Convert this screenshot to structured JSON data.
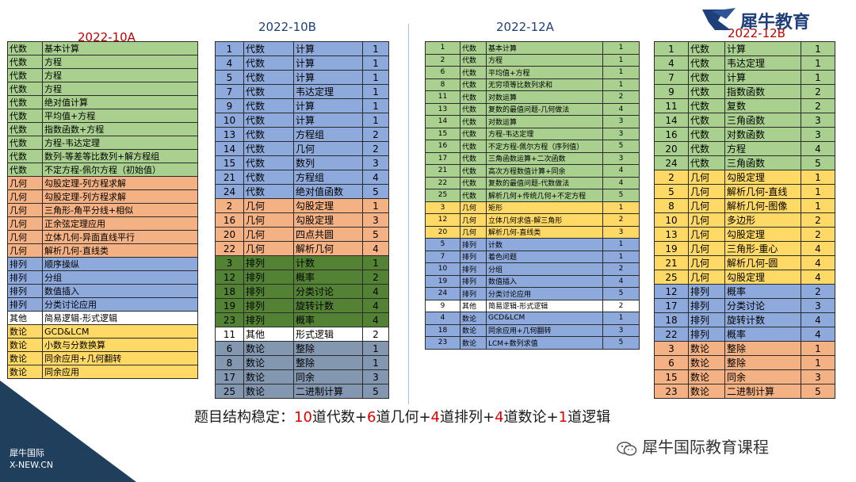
{
  "logo": {
    "brand": "犀牛教育"
  },
  "watermark": {
    "line1": "犀牛国际",
    "line2": "X-NEW.CN"
  },
  "wechat_label": "犀牛国际教育课程",
  "summary": [
    "题目结构稳定：",
    "10",
    "道代数+",
    "6",
    "道几何+",
    "4",
    "道排列+",
    "4",
    "道数论+",
    "1",
    "道逻辑"
  ],
  "tables": [
    {
      "title": "2022-10A",
      "rows": [
        [
          "代数",
          "基本计算",
          "green"
        ],
        [
          "代数",
          "方程",
          "green"
        ],
        [
          "代数",
          "方程",
          "green"
        ],
        [
          "代数",
          "方程",
          "green"
        ],
        [
          "代数",
          "绝对值计算",
          "green"
        ],
        [
          "代数",
          "平均值+方程",
          "green"
        ],
        [
          "代数",
          "指数函数+方程",
          "green"
        ],
        [
          "代数",
          "方程-韦达定理",
          "green"
        ],
        [
          "代数",
          "数列-等差等比数列+解方程组",
          "green"
        ],
        [
          "代数",
          "不定方程-佩尔方程（初始值）",
          "green"
        ],
        [
          "几何",
          "勾股定理-列方程求解",
          "orange"
        ],
        [
          "几何",
          "勾股定理-列方程求解",
          "orange"
        ],
        [
          "几何",
          "三角形-角平分线+相似",
          "orange"
        ],
        [
          "几何",
          "正余弦定理应用",
          "orange"
        ],
        [
          "几何",
          "立体几何-异面直线平行",
          "orange"
        ],
        [
          "几何",
          "解析几何-直线类",
          "orange"
        ],
        [
          "排列",
          "顺序操纵",
          "blue"
        ],
        [
          "排列",
          "分组",
          "blue"
        ],
        [
          "排列",
          "数值插入",
          "blue"
        ],
        [
          "排列",
          "分类讨论应用",
          "blue"
        ],
        [
          "其他",
          "简易逻辑-形式逻辑",
          "white"
        ],
        [
          "数论",
          "GCD&LCM",
          "yellow"
        ],
        [
          "数论",
          "小数与分数换算",
          "yellow"
        ],
        [
          "数论",
          "同余应用+几何翻转",
          "yellow"
        ],
        [
          "数论",
          "同余应用",
          "yellow"
        ]
      ]
    },
    {
      "title": "2022-10B",
      "rows": [
        [
          "1",
          "代数",
          "计算",
          "1",
          "blue"
        ],
        [
          "4",
          "代数",
          "计算",
          "1",
          "blue"
        ],
        [
          "5",
          "代数",
          "计算",
          "1",
          "blue"
        ],
        [
          "7",
          "代数",
          "韦达定理",
          "1",
          "blue"
        ],
        [
          "9",
          "代数",
          "计算",
          "1",
          "blue"
        ],
        [
          "10",
          "代数",
          "计算",
          "1",
          "blue"
        ],
        [
          "13",
          "代数",
          "方程组",
          "2",
          "blue"
        ],
        [
          "14",
          "代数",
          "几何",
          "2",
          "blue"
        ],
        [
          "15",
          "代数",
          "数列",
          "3",
          "blue"
        ],
        [
          "21",
          "代数",
          "方程组",
          "4",
          "blue"
        ],
        [
          "24",
          "代数",
          "绝对值函数",
          "5",
          "blue"
        ],
        [
          "2",
          "几何",
          "勾股定理",
          "1",
          "orange"
        ],
        [
          "16",
          "几何",
          "勾股定理",
          "3",
          "orange"
        ],
        [
          "20",
          "几何",
          "四点共圆",
          "5",
          "orange"
        ],
        [
          "22",
          "几何",
          "解析几何",
          "4",
          "orange"
        ],
        [
          "3",
          "排列",
          "计数",
          "1",
          "dgreen"
        ],
        [
          "12",
          "排列",
          "概率",
          "2",
          "dgreen"
        ],
        [
          "18",
          "排列",
          "分类讨论",
          "4",
          "dgreen"
        ],
        [
          "19",
          "排列",
          "旋转计数",
          "4",
          "dgreen"
        ],
        [
          "23",
          "排列",
          "概率",
          "4",
          "dgreen"
        ],
        [
          "11",
          "其他",
          "形式逻辑",
          "2",
          "white"
        ],
        [
          "6",
          "数论",
          "整除",
          "1",
          "gray"
        ],
        [
          "8",
          "数论",
          "整除",
          "1",
          "gray"
        ],
        [
          "17",
          "数论",
          "同余",
          "3",
          "gray"
        ],
        [
          "25",
          "数论",
          "二进制计算",
          "5",
          "gray"
        ]
      ]
    },
    {
      "title": "2022-12A",
      "rows": [
        [
          "1",
          "代数",
          "基本计算",
          "1",
          "green"
        ],
        [
          "2",
          "代数",
          "方程",
          "1",
          "green"
        ],
        [
          "6",
          "代数",
          "平均值+方程",
          "1",
          "green"
        ],
        [
          "8",
          "代数",
          "无穷项等比数列求和",
          "1",
          "green"
        ],
        [
          "11",
          "代数",
          "对数运算",
          "2",
          "green"
        ],
        [
          "13",
          "代数",
          "复数的最值问题-几何做法",
          "4",
          "green"
        ],
        [
          "14",
          "代数",
          "对数运算",
          "3",
          "green"
        ],
        [
          "15",
          "代数",
          "方程-韦达定理",
          "3",
          "green"
        ],
        [
          "16",
          "代数",
          "不定方程-佩尔方程（序列值）",
          "5",
          "green"
        ],
        [
          "17",
          "代数",
          "三角函数运算+二次函数",
          "3",
          "green"
        ],
        [
          "21",
          "代数",
          "高次方程数值计算+同余",
          "4",
          "green"
        ],
        [
          "22",
          "代数",
          "复数的最值问题-代数做法",
          "4",
          "green"
        ],
        [
          "25",
          "代数",
          "解析几何+传统几何+不定方程",
          "5",
          "green"
        ],
        [
          "3",
          "几何",
          "矩形",
          "1",
          "yellow"
        ],
        [
          "12",
          "几何",
          "立体几何求值-解三角形",
          "2",
          "yellow"
        ],
        [
          "20",
          "几何",
          "解析几何-直线类",
          "3",
          "yellow"
        ],
        [
          "5",
          "排列",
          "计数",
          "1",
          "blue"
        ],
        [
          "7",
          "排列",
          "着色问题",
          "1",
          "blue"
        ],
        [
          "10",
          "排列",
          "分组",
          "2",
          "blue"
        ],
        [
          "19",
          "排列",
          "数值插入",
          "4",
          "blue"
        ],
        [
          "24",
          "排列",
          "分类讨论应用",
          "5",
          "blue"
        ],
        [
          "9",
          "其他",
          "简易逻辑-形式逻辑",
          "2",
          "white"
        ],
        [
          "4",
          "数论",
          "GCD&LCM",
          "1",
          "blue"
        ],
        [
          "18",
          "数论",
          "同余应用+几何翻转",
          "3",
          "blue"
        ],
        [
          "23",
          "数论",
          "LCM+数列求值",
          "5",
          "blue"
        ]
      ]
    },
    {
      "title": "2022-12B",
      "rows": [
        [
          "1",
          "代数",
          "计算",
          "1",
          "green"
        ],
        [
          "4",
          "代数",
          "韦达定理",
          "1",
          "green"
        ],
        [
          "7",
          "代数",
          "计算",
          "1",
          "green"
        ],
        [
          "9",
          "代数",
          "指数函数",
          "2",
          "green"
        ],
        [
          "11",
          "代数",
          "复数",
          "2",
          "green"
        ],
        [
          "14",
          "代数",
          "三角函数",
          "3",
          "green"
        ],
        [
          "16",
          "代数",
          "对数函数",
          "3",
          "green"
        ],
        [
          "20",
          "代数",
          "方程",
          "4",
          "green"
        ],
        [
          "24",
          "代数",
          "三角函数",
          "5",
          "green"
        ],
        [
          "2",
          "几何",
          "勾股定理",
          "1",
          "yellow"
        ],
        [
          "5",
          "几何",
          "解析几何-直线",
          "1",
          "yellow"
        ],
        [
          "8",
          "几何",
          "解析几何-图像",
          "1",
          "yellow"
        ],
        [
          "10",
          "几何",
          "多边形",
          "2",
          "yellow"
        ],
        [
          "13",
          "几何",
          "勾股定理",
          "2",
          "yellow"
        ],
        [
          "19",
          "几何",
          "三角形-重心",
          "4",
          "yellow"
        ],
        [
          "21",
          "几何",
          "解析几何-圆",
          "4",
          "yellow"
        ],
        [
          "25",
          "几何",
          "勾股定理",
          "4",
          "yellow"
        ],
        [
          "12",
          "排列",
          "概率",
          "2",
          "blue"
        ],
        [
          "17",
          "排列",
          "分类讨论",
          "3",
          "blue"
        ],
        [
          "18",
          "排列",
          "旋转计数",
          "4",
          "blue"
        ],
        [
          "22",
          "排列",
          "概率",
          "4",
          "blue"
        ],
        [
          "3",
          "数论",
          "整除",
          "1",
          "orange"
        ],
        [
          "6",
          "数论",
          "整除",
          "1",
          "orange"
        ],
        [
          "15",
          "数论",
          "同余",
          "3",
          "orange"
        ],
        [
          "23",
          "数论",
          "二进制计算",
          "5",
          "orange"
        ]
      ]
    }
  ]
}
